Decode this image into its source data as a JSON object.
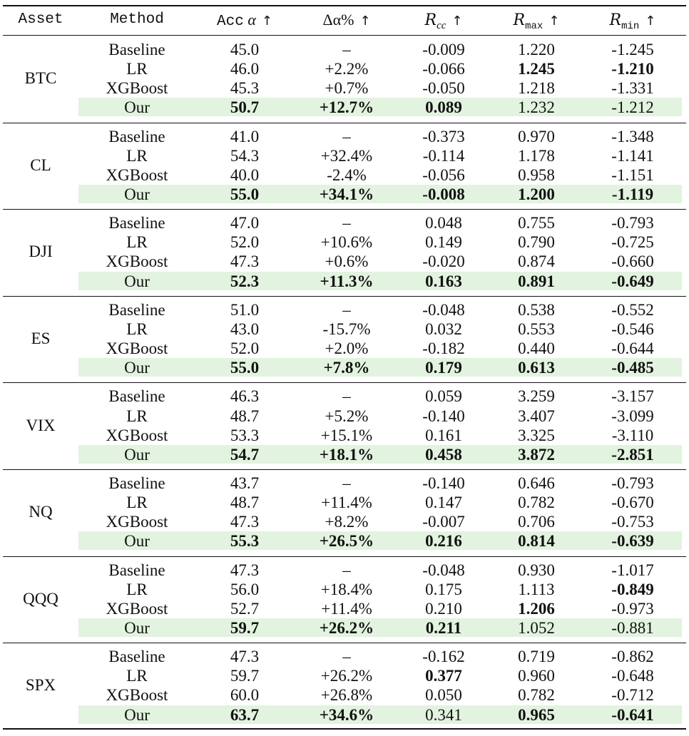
{
  "header": {
    "asset": "Asset",
    "method": "Method",
    "acc": "Acc",
    "acc_symbol": "α",
    "delta": "Δα%",
    "rcc": "R",
    "rcc_sub": "cc",
    "rmax": "R",
    "rmax_sub": "max",
    "rmin": "R",
    "rmin_sub": "min",
    "arrow": "↑"
  },
  "highlight_color": "#e2f3df",
  "groups": [
    {
      "asset": "BTC",
      "rows": [
        {
          "cells": [
            "Baseline",
            "45.0",
            "–",
            "-0.009",
            "1.220",
            "-1.245"
          ],
          "bold": []
        },
        {
          "cells": [
            "LR",
            "46.0",
            "+2.2%",
            "-0.066",
            "1.245",
            "-1.210"
          ],
          "bold": [
            4,
            5
          ]
        },
        {
          "cells": [
            "XGBoost",
            "45.3",
            "+0.7%",
            "-0.050",
            "1.218",
            "-1.331"
          ],
          "bold": []
        },
        {
          "cells": [
            "Our",
            "50.7",
            "+12.7%",
            "0.089",
            "1.232",
            "-1.212"
          ],
          "bold": [
            1,
            2,
            3
          ]
        }
      ]
    },
    {
      "asset": "CL",
      "rows": [
        {
          "cells": [
            "Baseline",
            "41.0",
            "–",
            "-0.373",
            "0.970",
            "-1.348"
          ],
          "bold": []
        },
        {
          "cells": [
            "LR",
            "54.3",
            "+32.4%",
            "-0.114",
            "1.178",
            "-1.141"
          ],
          "bold": []
        },
        {
          "cells": [
            "XGBoost",
            "40.0",
            "-2.4%",
            "-0.056",
            "0.958",
            "-1.151"
          ],
          "bold": []
        },
        {
          "cells": [
            "Our",
            "55.0",
            "+34.1%",
            "-0.008",
            "1.200",
            "-1.119"
          ],
          "bold": [
            1,
            2,
            3,
            4,
            5
          ]
        }
      ]
    },
    {
      "asset": "DJI",
      "rows": [
        {
          "cells": [
            "Baseline",
            "47.0",
            "–",
            "0.048",
            "0.755",
            "-0.793"
          ],
          "bold": []
        },
        {
          "cells": [
            "LR",
            "52.0",
            "+10.6%",
            "0.149",
            "0.790",
            "-0.725"
          ],
          "bold": []
        },
        {
          "cells": [
            "XGBoost",
            "47.3",
            "+0.6%",
            "-0.020",
            "0.874",
            "-0.660"
          ],
          "bold": []
        },
        {
          "cells": [
            "Our",
            "52.3",
            "+11.3%",
            "0.163",
            "0.891",
            "-0.649"
          ],
          "bold": [
            1,
            2,
            3,
            4,
            5
          ]
        }
      ]
    },
    {
      "asset": "ES",
      "rows": [
        {
          "cells": [
            "Baseline",
            "51.0",
            "–",
            "-0.048",
            "0.538",
            "-0.552"
          ],
          "bold": []
        },
        {
          "cells": [
            "LR",
            "43.0",
            "-15.7%",
            "0.032",
            "0.553",
            "-0.546"
          ],
          "bold": []
        },
        {
          "cells": [
            "XGBoost",
            "52.0",
            "+2.0%",
            "-0.182",
            "0.440",
            "-0.644"
          ],
          "bold": []
        },
        {
          "cells": [
            "Our",
            "55.0",
            "+7.8%",
            "0.179",
            "0.613",
            "-0.485"
          ],
          "bold": [
            1,
            2,
            3,
            4,
            5
          ]
        }
      ]
    },
    {
      "asset": "VIX",
      "rows": [
        {
          "cells": [
            "Baseline",
            "46.3",
            "–",
            "0.059",
            "3.259",
            "-3.157"
          ],
          "bold": []
        },
        {
          "cells": [
            "LR",
            "48.7",
            "+5.2%",
            "-0.140",
            "3.407",
            "-3.099"
          ],
          "bold": []
        },
        {
          "cells": [
            "XGBoost",
            "53.3",
            "+15.1%",
            "0.161",
            "3.325",
            "-3.110"
          ],
          "bold": []
        },
        {
          "cells": [
            "Our",
            "54.7",
            "+18.1%",
            "0.458",
            "3.872",
            "-2.851"
          ],
          "bold": [
            1,
            2,
            3,
            4,
            5
          ]
        }
      ]
    },
    {
      "asset": "NQ",
      "rows": [
        {
          "cells": [
            "Baseline",
            "43.7",
            "–",
            "-0.140",
            "0.646",
            "-0.793"
          ],
          "bold": []
        },
        {
          "cells": [
            "LR",
            "48.7",
            "+11.4%",
            "0.147",
            "0.782",
            "-0.670"
          ],
          "bold": []
        },
        {
          "cells": [
            "XGBoost",
            "47.3",
            "+8.2%",
            "-0.007",
            "0.706",
            "-0.753"
          ],
          "bold": []
        },
        {
          "cells": [
            "Our",
            "55.3",
            "+26.5%",
            "0.216",
            "0.814",
            "-0.639"
          ],
          "bold": [
            1,
            2,
            3,
            4,
            5
          ]
        }
      ]
    },
    {
      "asset": "QQQ",
      "rows": [
        {
          "cells": [
            "Baseline",
            "47.3",
            "–",
            "-0.048",
            "0.930",
            "-1.017"
          ],
          "bold": []
        },
        {
          "cells": [
            "LR",
            "56.0",
            "+18.4%",
            "0.175",
            "1.113",
            "-0.849"
          ],
          "bold": [
            5
          ]
        },
        {
          "cells": [
            "XGBoost",
            "52.7",
            "+11.4%",
            "0.210",
            "1.206",
            "-0.973"
          ],
          "bold": [
            4
          ]
        },
        {
          "cells": [
            "Our",
            "59.7",
            "+26.2%",
            "0.211",
            "1.052",
            "-0.881"
          ],
          "bold": [
            1,
            2,
            3
          ]
        }
      ]
    },
    {
      "asset": "SPX",
      "rows": [
        {
          "cells": [
            "Baseline",
            "47.3",
            "–",
            "-0.162",
            "0.719",
            "-0.862"
          ],
          "bold": []
        },
        {
          "cells": [
            "LR",
            "59.7",
            "+26.2%",
            "0.377",
            "0.960",
            "-0.648"
          ],
          "bold": [
            3
          ]
        },
        {
          "cells": [
            "XGBoost",
            "60.0",
            "+26.8%",
            "0.050",
            "0.782",
            "-0.712"
          ],
          "bold": []
        },
        {
          "cells": [
            "Our",
            "63.7",
            "+34.6%",
            "0.341",
            "0.965",
            "-0.641"
          ],
          "bold": [
            1,
            2,
            4,
            5
          ]
        }
      ]
    }
  ]
}
